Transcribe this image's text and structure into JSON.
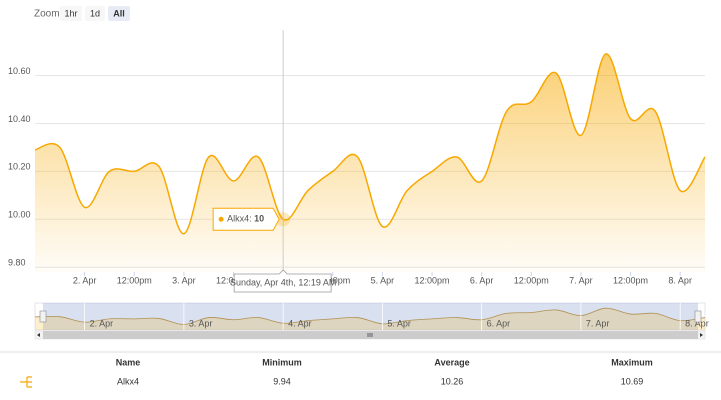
{
  "zoom": {
    "label": "Zoom",
    "buttons": [
      "1hr",
      "1d",
      "All"
    ]
  },
  "chart_data": {
    "type": "area",
    "x": [
      12,
      18,
      24,
      30,
      36,
      42,
      48,
      54,
      60,
      66,
      72,
      78,
      84,
      90,
      96,
      102,
      108,
      114,
      120,
      126,
      132,
      138,
      144,
      150,
      156,
      162,
      168,
      174
    ],
    "series": [
      {
        "name": "Alkx4",
        "color": "#f7a800",
        "values": [
          10.29,
          10.3,
          10.05,
          10.2,
          10.2,
          10.22,
          9.94,
          10.26,
          10.16,
          10.26,
          10,
          10.12,
          10.2,
          10.26,
          9.97,
          10.12,
          10.2,
          10.26,
          10.16,
          10.45,
          10.49,
          10.61,
          10.35,
          10.69,
          10.42,
          10.45,
          10.12,
          10.26
        ]
      }
    ],
    "xlim": [
      12,
      174
    ],
    "xticks": [
      {
        "value": 24,
        "label": "2. Apr"
      },
      {
        "value": 36,
        "label": "12:00pm"
      },
      {
        "value": 48,
        "label": "3. Apr"
      },
      {
        "value": 60,
        "label": "12:00pm"
      },
      {
        "value": 72,
        "label": "4. Apr"
      },
      {
        "value": 84,
        "label": "12:00pm"
      },
      {
        "value": 96,
        "label": "5. Apr"
      },
      {
        "value": 108,
        "label": "12:00pm"
      },
      {
        "value": 120,
        "label": "6. Apr"
      },
      {
        "value": 132,
        "label": "12:00pm"
      },
      {
        "value": 144,
        "label": "7. Apr"
      },
      {
        "value": 156,
        "label": "12:00pm"
      },
      {
        "value": 168,
        "label": "8. Apr"
      }
    ],
    "ylim": [
      9.78,
      10.79
    ],
    "yticks": [
      {
        "value": 9.8,
        "label": "9.80"
      },
      {
        "value": 10,
        "label": "10.00"
      },
      {
        "value": 10.2,
        "label": "10.20"
      },
      {
        "value": 10.4,
        "label": "10.40"
      },
      {
        "value": 10.6,
        "label": "10.60"
      }
    ],
    "grid": true,
    "crosshair_label": "Sunday, Apr 4th, 12:19 AM"
  },
  "table": {
    "columns": [
      "Name",
      "Minimum",
      "Average",
      "Maximum"
    ],
    "rows": [
      [
        "Alkx4",
        9.94,
        10.26,
        10.69
      ]
    ]
  }
}
